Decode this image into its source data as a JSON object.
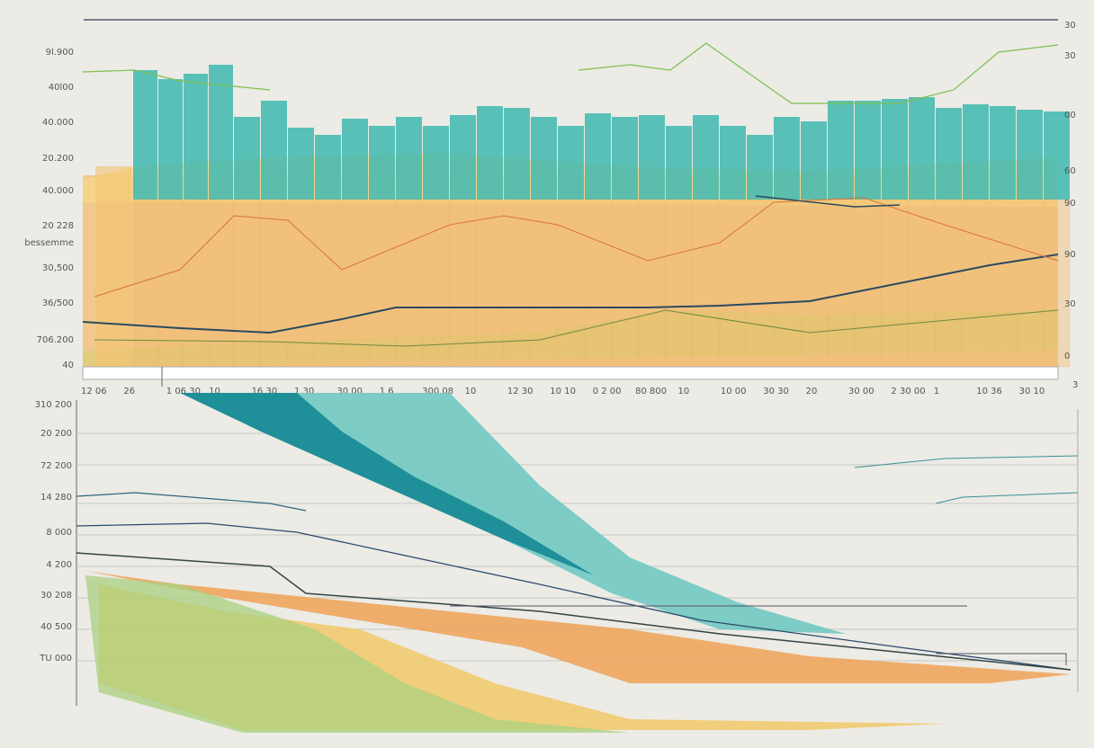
{
  "top_panel": {
    "left_labels": [
      "9l.900",
      "40l00",
      "40.000",
      "20.200",
      "40.000",
      "20 228",
      "bessemme",
      "30,500",
      "36/500",
      "706.200",
      "40"
    ],
    "right_labels": [
      "30",
      "30",
      "00",
      "60",
      "90",
      "90",
      "30",
      "0"
    ],
    "bottom_labels": [
      "12 06",
      "26",
      "1 06 30",
      "10",
      "16 30",
      "1 30",
      "30 00",
      "1 6",
      "300 08",
      "10",
      "12 30",
      "10 10",
      "0 2 00",
      "80 800",
      "10",
      "10 00",
      "30 30",
      "20",
      "30 00",
      "2 30 00",
      "1",
      "10 36",
      "30 10",
      "3"
    ]
  },
  "bottom_panel": {
    "left_labels": [
      "310 200",
      "20 200",
      "72 200",
      "14 280",
      "8 000",
      "4 200",
      "30 208",
      "40 500",
      "TU 000"
    ]
  }
}
